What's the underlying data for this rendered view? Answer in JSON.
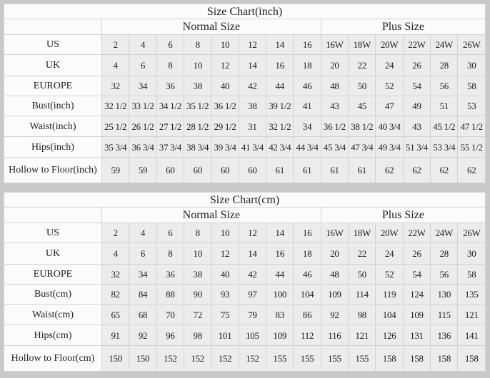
{
  "tables": [
    {
      "title": "Size Chart(inch)",
      "groups": [
        "Normal Size",
        "Plus Size"
      ],
      "rows": [
        {
          "label": "US",
          "values": [
            "2",
            "4",
            "6",
            "8",
            "10",
            "12",
            "14",
            "16",
            "16W",
            "18W",
            "20W",
            "22W",
            "24W",
            "26W"
          ]
        },
        {
          "label": "UK",
          "values": [
            "4",
            "6",
            "8",
            "10",
            "12",
            "14",
            "16",
            "18",
            "20",
            "22",
            "24",
            "26",
            "28",
            "30"
          ]
        },
        {
          "label": "EUROPE",
          "values": [
            "32",
            "34",
            "36",
            "38",
            "40",
            "42",
            "44",
            "46",
            "48",
            "50",
            "52",
            "54",
            "56",
            "58"
          ]
        },
        {
          "label": "Bust(inch)",
          "values": [
            "32 1/2",
            "33 1/2",
            "34 1/2",
            "35 1/2",
            "36 1/2",
            "38",
            "39 1/2",
            "41",
            "43",
            "45",
            "47",
            "49",
            "51",
            "53"
          ]
        },
        {
          "label": "Waist(inch)",
          "values": [
            "25 1/2",
            "26 1/2",
            "27 1/2",
            "28 1/2",
            "29 1/2",
            "31",
            "32 1/2",
            "34",
            "36 1/2",
            "38 1/2",
            "40 3/4",
            "43",
            "45 1/2",
            "47 1/2"
          ]
        },
        {
          "label": "Hips(inch)",
          "values": [
            "35 3/4",
            "36 3/4",
            "37 3/4",
            "38 3/4",
            "39 3/4",
            "41 3/4",
            "42 3/4",
            "44 3/4",
            "45 3/4",
            "47 3/4",
            "49 3/4",
            "51 3/4",
            "53 3/4",
            "55 1/2"
          ]
        },
        {
          "label": "Hollow to Floor(inch)",
          "values": [
            "59",
            "59",
            "60",
            "60",
            "60",
            "60",
            "61",
            "61",
            "61",
            "61",
            "62",
            "62",
            "62",
            "62"
          ]
        }
      ]
    },
    {
      "title": "Size Chart(cm)",
      "groups": [
        "Normal Size",
        "Plus Size"
      ],
      "rows": [
        {
          "label": "US",
          "values": [
            "2",
            "4",
            "6",
            "8",
            "10",
            "12",
            "14",
            "16",
            "16W",
            "18W",
            "20W",
            "22W",
            "24W",
            "26W"
          ]
        },
        {
          "label": "UK",
          "values": [
            "4",
            "6",
            "8",
            "10",
            "12",
            "14",
            "16",
            "18",
            "20",
            "22",
            "24",
            "26",
            "28",
            "30"
          ]
        },
        {
          "label": "EUROPE",
          "values": [
            "32",
            "34",
            "36",
            "38",
            "40",
            "42",
            "44",
            "46",
            "48",
            "50",
            "52",
            "54",
            "56",
            "58"
          ]
        },
        {
          "label": "Bust(cm)",
          "values": [
            "82",
            "84",
            "88",
            "90",
            "93",
            "97",
            "100",
            "104",
            "109",
            "114",
            "119",
            "124",
            "130",
            "135"
          ]
        },
        {
          "label": "Waist(cm)",
          "values": [
            "65",
            "68",
            "70",
            "72",
            "75",
            "79",
            "83",
            "86",
            "92",
            "98",
            "104",
            "109",
            "115",
            "121"
          ]
        },
        {
          "label": "Hips(cm)",
          "values": [
            "91",
            "92",
            "96",
            "98",
            "101",
            "105",
            "109",
            "112",
            "116",
            "121",
            "126",
            "131",
            "136",
            "141"
          ]
        },
        {
          "label": "Hollow to Floor(cm)",
          "values": [
            "150",
            "150",
            "152",
            "152",
            "152",
            "152",
            "155",
            "155",
            "155",
            "155",
            "158",
            "158",
            "158",
            "158"
          ]
        }
      ]
    }
  ]
}
